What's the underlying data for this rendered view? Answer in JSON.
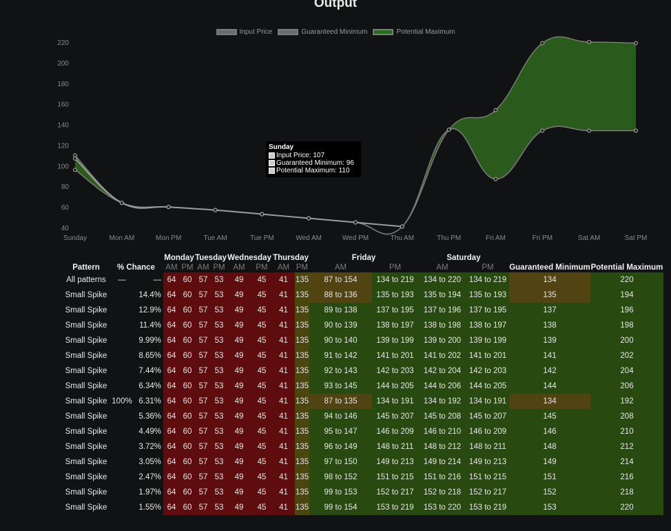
{
  "title": "Output",
  "legend": [
    {
      "label": "Input Price",
      "color": "#6b6b6b"
    },
    {
      "label": "Guaranteed Minimum",
      "color": "#6b6b6b"
    },
    {
      "label": "Potential Maximum",
      "color": "#2a6a1e"
    }
  ],
  "colors": {
    "band_fill": "#2b5a1d",
    "line": "#8a8a8a"
  },
  "chart_data": {
    "type": "area",
    "categories": [
      "Sunday",
      "Mon AM",
      "Mon PM",
      "Tue AM",
      "Tue PM",
      "Wed AM",
      "Wed PM",
      "Thu AM",
      "Thu PM",
      "Fri AM",
      "Fri PM",
      "Sat AM",
      "Sat PM"
    ],
    "ylim": [
      40,
      220
    ],
    "yticks": [
      40,
      60,
      80,
      100,
      120,
      140,
      160,
      180,
      200,
      220
    ],
    "series": [
      {
        "name": "Input Price",
        "values": [
          107,
          64,
          60,
          57,
          53,
          49,
          45,
          41,
          null,
          null,
          null,
          null,
          null
        ]
      },
      {
        "name": "Guaranteed Minimum",
        "values": [
          96,
          64,
          60,
          57,
          53,
          49,
          45,
          41,
          135,
          87,
          134,
          134,
          134
        ]
      },
      {
        "name": "Potential Maximum",
        "values": [
          110,
          64,
          60,
          57,
          53,
          49,
          45,
          41,
          135,
          154,
          219,
          220,
          219
        ]
      }
    ],
    "grid": false,
    "legend_position": "top"
  },
  "tooltip": {
    "title": "Sunday",
    "lines": [
      "Input Price: 107",
      "Guaranteed Minimum: 96",
      "Potential Maximum: 110"
    ]
  },
  "table": {
    "header_top": [
      "Monday",
      "Tuesday",
      "Wednesday",
      "Thursday",
      "Friday",
      "Saturday"
    ],
    "header_pattern": "Pattern",
    "header_chance": "% Chance",
    "header_min": "Guaranteed Minimum",
    "header_max": "Potential Maximum",
    "am": "AM",
    "pm": "PM",
    "rows": [
      {
        "pattern": "All patterns",
        "group": "—",
        "pct": "—",
        "prices": [
          "64",
          "60",
          "57",
          "53",
          "49",
          "45",
          "41",
          "135"
        ],
        "fri_am": "87 to 154",
        "fri_pm": "134 to 219",
        "sat_am": "134 to 220",
        "sat_pm": "134 to 219",
        "min": "134",
        "max": "220"
      },
      {
        "pattern": "Small Spike",
        "group": "",
        "pct": "14.4%",
        "prices": [
          "64",
          "60",
          "57",
          "53",
          "49",
          "45",
          "41",
          "135"
        ],
        "fri_am": "88 to 136",
        "fri_pm": "135 to 193",
        "sat_am": "135 to 194",
        "sat_pm": "135 to 193",
        "min": "135",
        "max": "194"
      },
      {
        "pattern": "Small Spike",
        "group": "",
        "pct": "12.9%",
        "prices": [
          "64",
          "60",
          "57",
          "53",
          "49",
          "45",
          "41",
          "135"
        ],
        "fri_am": "89 to 138",
        "fri_pm": "137 to 195",
        "sat_am": "137 to 196",
        "sat_pm": "137 to 195",
        "min": "137",
        "max": "196"
      },
      {
        "pattern": "Small Spike",
        "group": "",
        "pct": "11.4%",
        "prices": [
          "64",
          "60",
          "57",
          "53",
          "49",
          "45",
          "41",
          "135"
        ],
        "fri_am": "90 to 139",
        "fri_pm": "138 to 197",
        "sat_am": "138 to 198",
        "sat_pm": "138 to 197",
        "min": "138",
        "max": "198"
      },
      {
        "pattern": "Small Spike",
        "group": "",
        "pct": "9.99%",
        "prices": [
          "64",
          "60",
          "57",
          "53",
          "49",
          "45",
          "41",
          "135"
        ],
        "fri_am": "90 to 140",
        "fri_pm": "139 to 199",
        "sat_am": "139 to 200",
        "sat_pm": "139 to 199",
        "min": "139",
        "max": "200"
      },
      {
        "pattern": "Small Spike",
        "group": "",
        "pct": "8.65%",
        "prices": [
          "64",
          "60",
          "57",
          "53",
          "49",
          "45",
          "41",
          "135"
        ],
        "fri_am": "91 to 142",
        "fri_pm": "141 to 201",
        "sat_am": "141 to 202",
        "sat_pm": "141 to 201",
        "min": "141",
        "max": "202"
      },
      {
        "pattern": "Small Spike",
        "group": "",
        "pct": "7.44%",
        "prices": [
          "64",
          "60",
          "57",
          "53",
          "49",
          "45",
          "41",
          "135"
        ],
        "fri_am": "92 to 143",
        "fri_pm": "142 to 203",
        "sat_am": "142 to 204",
        "sat_pm": "142 to 203",
        "min": "142",
        "max": "204"
      },
      {
        "pattern": "Small Spike",
        "group": "",
        "pct": "6.34%",
        "prices": [
          "64",
          "60",
          "57",
          "53",
          "49",
          "45",
          "41",
          "135"
        ],
        "fri_am": "93 to 145",
        "fri_pm": "144 to 205",
        "sat_am": "144 to 206",
        "sat_pm": "144 to 205",
        "min": "144",
        "max": "206"
      },
      {
        "pattern": "Small Spike",
        "group": "100%",
        "pct": "6.31%",
        "prices": [
          "64",
          "60",
          "57",
          "53",
          "49",
          "45",
          "41",
          "135"
        ],
        "fri_am": "87 to 135",
        "fri_pm": "134 to 191",
        "sat_am": "134 to 192",
        "sat_pm": "134 to 191",
        "min": "134",
        "max": "192"
      },
      {
        "pattern": "Small Spike",
        "group": "",
        "pct": "5.36%",
        "prices": [
          "64",
          "60",
          "57",
          "53",
          "49",
          "45",
          "41",
          "135"
        ],
        "fri_am": "94 to 146",
        "fri_pm": "145 to 207",
        "sat_am": "145 to 208",
        "sat_pm": "145 to 207",
        "min": "145",
        "max": "208"
      },
      {
        "pattern": "Small Spike",
        "group": "",
        "pct": "4.49%",
        "prices": [
          "64",
          "60",
          "57",
          "53",
          "49",
          "45",
          "41",
          "135"
        ],
        "fri_am": "95 to 147",
        "fri_pm": "146 to 209",
        "sat_am": "146 to 210",
        "sat_pm": "146 to 209",
        "min": "146",
        "max": "210"
      },
      {
        "pattern": "Small Spike",
        "group": "",
        "pct": "3.72%",
        "prices": [
          "64",
          "60",
          "57",
          "53",
          "49",
          "45",
          "41",
          "135"
        ],
        "fri_am": "96 to 149",
        "fri_pm": "148 to 211",
        "sat_am": "148 to 212",
        "sat_pm": "148 to 211",
        "min": "148",
        "max": "212"
      },
      {
        "pattern": "Small Spike",
        "group": "",
        "pct": "3.05%",
        "prices": [
          "64",
          "60",
          "57",
          "53",
          "49",
          "45",
          "41",
          "135"
        ],
        "fri_am": "97 to 150",
        "fri_pm": "149 to 213",
        "sat_am": "149 to 214",
        "sat_pm": "149 to 213",
        "min": "149",
        "max": "214"
      },
      {
        "pattern": "Small Spike",
        "group": "",
        "pct": "2.47%",
        "prices": [
          "64",
          "60",
          "57",
          "53",
          "49",
          "45",
          "41",
          "135"
        ],
        "fri_am": "98 to 152",
        "fri_pm": "151 to 215",
        "sat_am": "151 to 216",
        "sat_pm": "151 to 215",
        "min": "151",
        "max": "216"
      },
      {
        "pattern": "Small Spike",
        "group": "",
        "pct": "1.97%",
        "prices": [
          "64",
          "60",
          "57",
          "53",
          "49",
          "45",
          "41",
          "135"
        ],
        "fri_am": "99 to 153",
        "fri_pm": "152 to 217",
        "sat_am": "152 to 218",
        "sat_pm": "152 to 217",
        "min": "152",
        "max": "218"
      },
      {
        "pattern": "Small Spike",
        "group": "",
        "pct": "1.55%",
        "prices": [
          "64",
          "60",
          "57",
          "53",
          "49",
          "45",
          "41",
          "135"
        ],
        "fri_am": "99 to 154",
        "fri_pm": "153 to 219",
        "sat_am": "153 to 220",
        "sat_pm": "153 to 219",
        "min": "153",
        "max": "220"
      }
    ],
    "highlight_rows": [
      0,
      1,
      8
    ]
  }
}
